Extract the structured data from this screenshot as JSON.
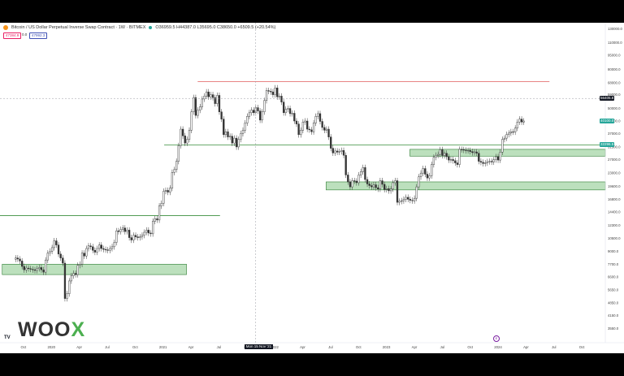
{
  "header": {
    "title": "Bitcoin / US Dollar Perpetual Inverse Swap Contract · 1W · BITMEX",
    "ohlc": "O36959.5 H44387.0 L35695.0 C38650.0 +6509.5 (+20.54%)",
    "indicators": [
      "47384.9",
      "0.0",
      "47992.3"
    ]
  },
  "logo": {
    "brand_a": "WOO",
    "brand_b": "X",
    "tv_mark": "TV"
  },
  "crosshair": {
    "date_label": "Mon 15 Nov '21",
    "price_label": "56405.8"
  },
  "last_price_label": "40100.0",
  "support_label": "32296.5",
  "colors": {
    "up": "#26a69a",
    "down": "#ef5350",
    "candle": "#333333",
    "zone_fill": "#a5d6a7",
    "zone_border": "#2e7d32",
    "support_line": "#388e3c",
    "resistance_line": "#e57373",
    "accent": "#4caf50"
  },
  "chart_data": {
    "type": "candlestick",
    "series_timeframe": "1W",
    "yscale": "log",
    "ylim": [
      3000,
      140000
    ],
    "x_tick_labels": [
      "Oct",
      "2020",
      "Apr",
      "Jul",
      "Oct",
      "2021",
      "Apr",
      "Jul",
      "Oct",
      "2022",
      "Apr",
      "Jul",
      "Oct",
      "2023",
      "Apr",
      "Jul",
      "Oct",
      "2024",
      "Apr",
      "Jul",
      "Oct"
    ],
    "y_tick_labels": [
      "130000.0",
      "110000.0",
      "95000.0",
      "80000.0",
      "68000.0",
      "59000.0",
      "50000.0",
      "43000.0",
      "37000.0",
      "31500.0",
      "27000.0",
      "23000.0",
      "19600.0",
      "16800.0",
      "14400.0",
      "12300.0",
      "10500.0",
      "9000.0",
      "7700.0",
      "6600.0",
      "5650.0",
      "4850.0",
      "4150.0",
      "3550.0"
    ],
    "y_tick_values": [
      130000,
      110000,
      95000,
      80000,
      68000,
      59000,
      50000,
      43000,
      37000,
      31500,
      27000,
      23000,
      19600,
      16800,
      14400,
      12300,
      10500,
      9000,
      7700,
      6600,
      5650,
      4850,
      4150,
      3550
    ],
    "levels": [
      {
        "kind": "resistance",
        "price": 69000,
        "from": 2021.35,
        "to": 2024.5
      },
      {
        "kind": "support",
        "price": 32296.5,
        "from": 2021.05,
        "to": 2025.0
      },
      {
        "kind": "support",
        "price": 13800,
        "from": 2019.3,
        "to": 2021.55
      }
    ],
    "zones": [
      {
        "low": 28200,
        "high": 30600,
        "from": 2023.25,
        "to": 2025.0
      },
      {
        "low": 18800,
        "high": 20700,
        "from": 2022.5,
        "to": 2025.0
      },
      {
        "low": 6800,
        "high": 7700,
        "from": 2019.6,
        "to": 2021.25
      }
    ],
    "crosshair": {
      "x": 2021.87,
      "y": 56405.8
    },
    "candles_x_start": 2019.72,
    "candles_x_step": 0.0192,
    "closes": [
      8300,
      8200,
      8000,
      7500,
      7200,
      7350,
      7300,
      7250,
      7200,
      7150,
      7300,
      7400,
      7200,
      7000,
      8100,
      8800,
      9000,
      9400,
      10200,
      9700,
      8700,
      8300,
      7800,
      5100,
      5400,
      6300,
      6700,
      6900,
      6800,
      7600,
      7700,
      8800,
      8500,
      9300,
      9600,
      9500,
      9100,
      8900,
      9300,
      9700,
      9300,
      9200,
      9150,
      9100,
      9300,
      9500,
      10000,
      11500,
      11400,
      11700,
      11900,
      11400,
      11600,
      10600,
      10300,
      10900,
      10700,
      10600,
      10700,
      10900,
      11300,
      11600,
      11200,
      11100,
      12900,
      13300,
      13100,
      15500,
      16000,
      18500,
      18700,
      18300,
      19200,
      23200,
      24000,
      26500,
      32000,
      39000,
      36000,
      33000,
      34500,
      38500,
      48000,
      57000,
      46000,
      49000,
      51000,
      56000,
      58000,
      61000,
      57500,
      59000,
      57000,
      53000,
      58500,
      48000,
      44000,
      36500,
      37800,
      35500,
      35800,
      33000,
      35000,
      31500,
      34500,
      37000,
      38500,
      42000,
      45500,
      47500,
      49000,
      47500,
      50500,
      48500,
      43500,
      48000,
      55000,
      62000,
      61500,
      61000,
      59000,
      64000,
      57500,
      58000,
      54000,
      47500,
      49500,
      50000,
      47000,
      47200,
      43000,
      41500,
      36500,
      38500,
      42500,
      43000,
      39000,
      38700,
      37800,
      42000,
      45500,
      47000,
      42800,
      39800,
      38500,
      39000,
      35500,
      31000,
      29300,
      30000,
      29600,
      29800,
      30200,
      28500,
      22500,
      20700,
      19500,
      21000,
      20900,
      20500,
      22500,
      23400,
      24600,
      21300,
      20200,
      19800,
      19500,
      20000,
      19300,
      19000,
      21000,
      20100,
      18900,
      19100,
      18600,
      19000,
      20500,
      21000,
      16200,
      16400,
      16500,
      16800,
      17200,
      16800,
      16600,
      16500,
      17000,
      19500,
      22000,
      23000,
      24300,
      22700,
      21700,
      22300,
      25500,
      27800,
      28500,
      28800,
      30500,
      28400,
      29200,
      28000,
      26900,
      27100,
      26700,
      26000,
      25500,
      30600,
      30500,
      30300,
      30100,
      30200,
      29800,
      29400,
      29700,
      29200,
      26500,
      26200,
      25800,
      26000,
      26400,
      26500,
      26300,
      27000,
      28000,
      26900,
      29600,
      34500,
      35000,
      36600,
      37200,
      37800,
      37700,
      39500,
      42500,
      44000,
      42500,
      43000
    ]
  }
}
